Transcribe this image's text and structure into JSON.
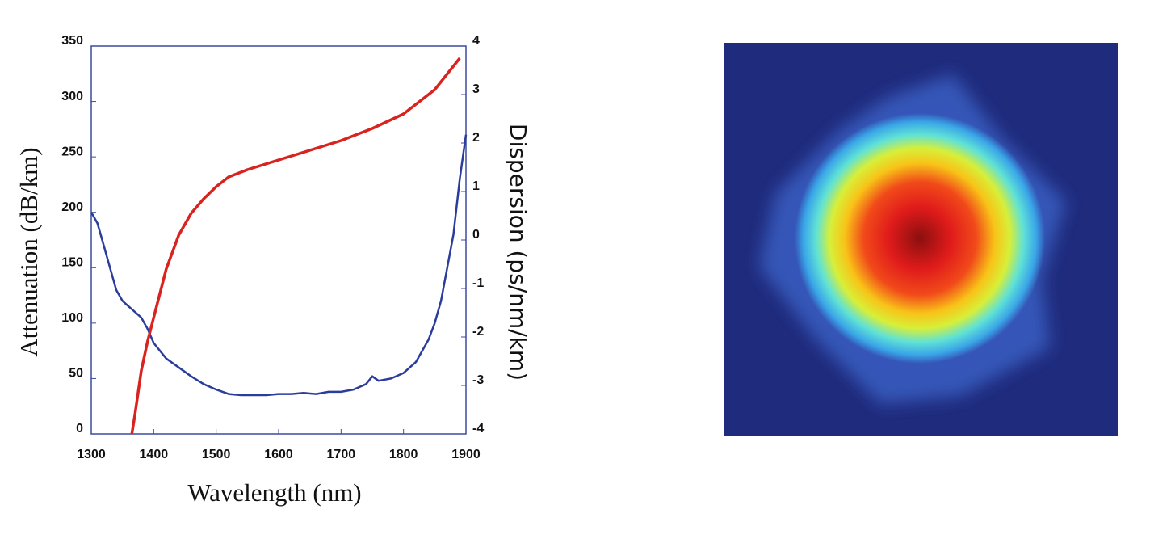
{
  "chart_data": {
    "type": "line",
    "xlabel": "Wavelength (nm)",
    "ylabel": "Attenuation (dB/km)",
    "y2label": "Dispersion (ps/nm/km)",
    "xlim": [
      1300,
      1900
    ],
    "xticks": [
      1300,
      1400,
      1500,
      1600,
      1700,
      1800,
      1900
    ],
    "ylim": [
      0,
      350
    ],
    "yticks": [
      0,
      50,
      100,
      150,
      200,
      250,
      300,
      350
    ],
    "y2lim": [
      -4,
      4
    ],
    "y2ticks": [
      -4,
      -3,
      -2,
      -1,
      0,
      1,
      2,
      3,
      4
    ],
    "series": [
      {
        "color": "#2b3d9c",
        "x": [
          1300,
          1310,
          1320,
          1330,
          1340,
          1350,
          1360,
          1370,
          1380,
          1390,
          1400,
          1420,
          1440,
          1460,
          1480,
          1500,
          1520,
          1540,
          1560,
          1580,
          1600,
          1620,
          1640,
          1660,
          1680,
          1700,
          1720,
          1740,
          1750,
          1760,
          1780,
          1800,
          1820,
          1840,
          1850,
          1860,
          1870,
          1880,
          1890,
          1900
        ],
        "values": [
          200,
          190,
          170,
          150,
          130,
          120,
          115,
          110,
          105,
          95,
          82,
          68,
          60,
          52,
          45,
          40,
          36,
          35,
          35,
          35,
          36,
          36,
          37,
          36,
          38,
          38,
          40,
          45,
          52,
          48,
          50,
          55,
          65,
          85,
          100,
          120,
          150,
          180,
          230,
          270
        ]
      },
      {
        "color": "#d9231f",
        "axis": "y2",
        "x": [
          1365,
          1370,
          1380,
          1390,
          1400,
          1420,
          1440,
          1460,
          1480,
          1500,
          1520,
          1550,
          1600,
          1650,
          1700,
          1750,
          1800,
          1850,
          1890
        ],
        "values": [
          -4,
          -3.6,
          -2.7,
          -2.1,
          -1.6,
          -0.6,
          0.1,
          0.55,
          0.85,
          1.1,
          1.3,
          1.45,
          1.65,
          1.85,
          2.05,
          2.3,
          2.6,
          3.1,
          3.75
        ]
      }
    ]
  }
}
